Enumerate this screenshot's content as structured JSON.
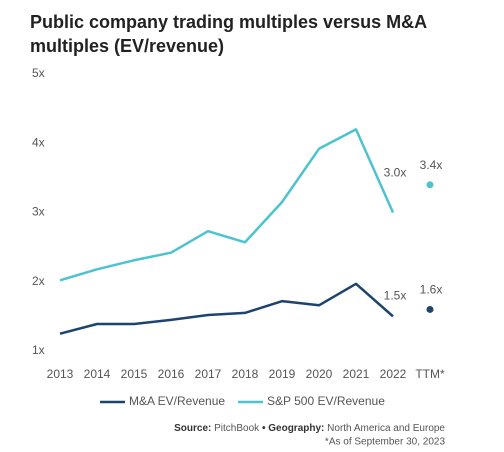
{
  "chart_data": {
    "type": "line",
    "title": [
      "Public company trading multiples versus M&A",
      "multiples (EV/revenue)"
    ],
    "categories": [
      "2013",
      "2014",
      "2015",
      "2016",
      "2017",
      "2018",
      "2019",
      "2020",
      "2021",
      "2022"
    ],
    "ttm_category": "TTM*",
    "ylim": [
      1,
      5
    ],
    "yticks": [
      {
        "value": 1,
        "label": "1x"
      },
      {
        "value": 2,
        "label": "2x"
      },
      {
        "value": 3,
        "label": "3x"
      },
      {
        "value": 4,
        "label": "4x"
      },
      {
        "value": 5,
        "label": "5x"
      }
    ],
    "series": [
      {
        "name": "M&A EV/Revenue",
        "color": "#1d446f",
        "values": [
          1.25,
          1.39,
          1.39,
          1.45,
          1.52,
          1.55,
          1.72,
          1.66,
          1.97,
          1.5
        ],
        "value_labels": [
          null,
          null,
          null,
          null,
          null,
          null,
          null,
          null,
          null,
          "1.5x"
        ],
        "ttm_value": 1.6,
        "ttm_value_label": "1.6x"
      },
      {
        "name": "S&P 500 EV/Revenue",
        "color": "#4cc3cf",
        "values": [
          2.02,
          2.18,
          2.31,
          2.42,
          2.73,
          2.57,
          3.15,
          3.92,
          4.2,
          3.0
        ],
        "value_labels": [
          null,
          null,
          null,
          null,
          null,
          null,
          null,
          null,
          null,
          "3.0x"
        ],
        "ttm_value": 3.4,
        "ttm_value_label": "3.4x"
      }
    ],
    "legend": "bottom",
    "source": {
      "label": "Source:",
      "text": "PitchBook",
      "separator": "•",
      "geo_label": "Geography:",
      "geo_text": "North America and Europe"
    },
    "footnote": "*As of September 30, 2023"
  }
}
